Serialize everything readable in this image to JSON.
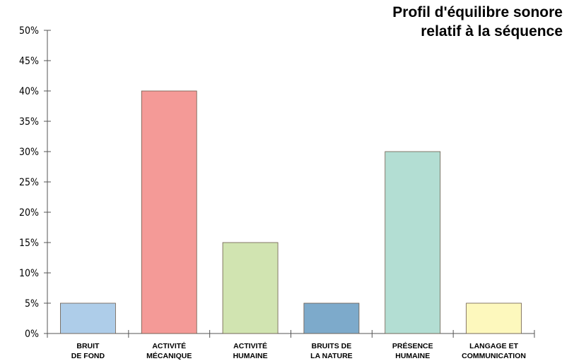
{
  "chart_data": {
    "type": "bar",
    "title_lines": [
      "Profil d'équilibre sonore",
      "relatif à la séquence"
    ],
    "categories": [
      [
        "BRUIT",
        "DE FOND"
      ],
      [
        "ACTIVITÉ",
        "MÉCANIQUE"
      ],
      [
        "ACTIVITÉ",
        "HUMAINE"
      ],
      [
        "BRUITS DE",
        "LA NATURE"
      ],
      [
        "PRÉSENCE",
        "HUMAINE"
      ],
      [
        "LANGAGE ET",
        "COMMUNICATION"
      ]
    ],
    "values": [
      5,
      40,
      15,
      5,
      30,
      5
    ],
    "colors": [
      "#aecde9",
      "#f49a97",
      "#d1e4b1",
      "#7daacb",
      "#b3ded3",
      "#fdf8bd"
    ],
    "ylim": [
      0,
      50
    ],
    "yticks": [
      "0%",
      "5%",
      "10%",
      "15%",
      "20%",
      "25%",
      "30%",
      "35%",
      "40%",
      "45%",
      "50%"
    ],
    "grid": false,
    "xlabel": "",
    "ylabel": ""
  }
}
